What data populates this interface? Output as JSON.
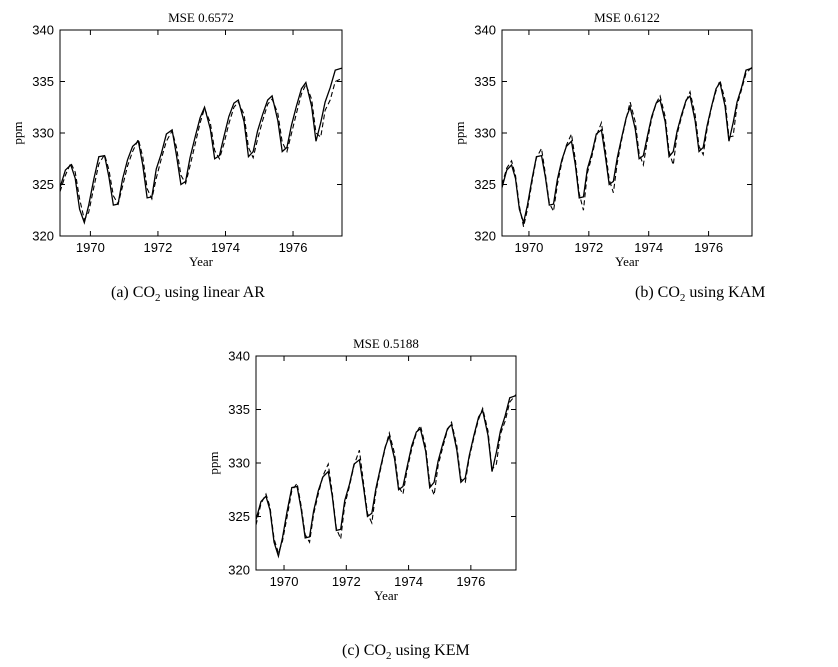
{
  "chart_data": [
    {
      "type": "line",
      "title": "MSE 0.6572",
      "xlabel": "Year",
      "ylabel": "ppm",
      "xlim": [
        1969.1,
        1977.45
      ],
      "ylim": [
        320,
        340
      ],
      "xticks": [
        1970,
        1972,
        1974,
        1976
      ],
      "yticks": [
        320,
        325,
        330,
        335,
        340
      ],
      "caption_prefix": "(a)",
      "caption_co": "CO",
      "caption_sub": "2",
      "caption_rest": "using linear AR",
      "series": [
        {
          "style": "solid",
          "x": [
            1969.1,
            1969.26,
            1969.42,
            1969.55,
            1969.68,
            1969.82,
            1969.95,
            1970.1,
            1970.25,
            1970.42,
            1970.55,
            1970.68,
            1970.82,
            1970.95,
            1971.1,
            1971.25,
            1971.42,
            1971.55,
            1971.68,
            1971.82,
            1971.95,
            1972.1,
            1972.25,
            1972.42,
            1972.55,
            1972.68,
            1972.82,
            1972.95,
            1973.1,
            1973.25,
            1973.38,
            1973.55,
            1973.68,
            1973.82,
            1973.95,
            1974.1,
            1974.25,
            1974.38,
            1974.55,
            1974.68,
            1974.82,
            1974.95,
            1975.1,
            1975.25,
            1975.38,
            1975.55,
            1975.68,
            1975.82,
            1975.95,
            1976.1,
            1976.25,
            1976.38,
            1976.55,
            1976.68,
            1976.82,
            1976.95,
            1977.1,
            1977.25,
            1977.45
          ],
          "y": [
            324.7,
            326.4,
            326.9,
            325.6,
            322.6,
            321.3,
            323.0,
            325.5,
            327.7,
            327.8,
            325.7,
            323.0,
            323.1,
            325.5,
            327.4,
            328.7,
            329.2,
            326.9,
            323.7,
            323.8,
            326.5,
            328.0,
            329.9,
            330.3,
            327.8,
            325.0,
            325.3,
            327.6,
            329.6,
            331.5,
            332.5,
            330.4,
            327.5,
            327.8,
            329.6,
            331.6,
            332.9,
            333.2,
            331.1,
            327.7,
            328.2,
            330.2,
            331.8,
            333.2,
            333.6,
            331.2,
            328.2,
            328.6,
            330.7,
            332.6,
            334.3,
            334.9,
            332.6,
            329.2,
            331.0,
            333.0,
            334.4,
            336.1,
            336.3
          ]
        },
        {
          "style": "dashed",
          "x": [
            1969.1,
            1969.26,
            1969.42,
            1969.55,
            1969.68,
            1969.82,
            1969.95,
            1970.1,
            1970.25,
            1970.42,
            1970.55,
            1970.68,
            1970.82,
            1970.95,
            1971.1,
            1971.25,
            1971.42,
            1971.55,
            1971.68,
            1971.82,
            1971.95,
            1972.1,
            1972.25,
            1972.42,
            1972.55,
            1972.68,
            1972.82,
            1972.95,
            1973.1,
            1973.25,
            1973.38,
            1973.55,
            1973.68,
            1973.82,
            1973.95,
            1974.1,
            1974.25,
            1974.38,
            1974.55,
            1974.68,
            1974.82,
            1974.95,
            1975.1,
            1975.25,
            1975.38,
            1975.55,
            1975.68,
            1975.82,
            1975.95,
            1976.1,
            1976.25,
            1976.38,
            1976.55,
            1976.68,
            1976.82,
            1976.95,
            1977.1,
            1977.25,
            1977.45
          ],
          "y": [
            324.3,
            325.9,
            327.1,
            326.2,
            323.6,
            321.6,
            322.3,
            324.7,
            327.0,
            327.9,
            326.4,
            323.9,
            323.1,
            324.8,
            326.8,
            328.2,
            329.4,
            327.7,
            324.6,
            323.6,
            325.6,
            327.5,
            329.2,
            330.2,
            328.6,
            325.9,
            325.1,
            326.8,
            328.9,
            331.0,
            332.4,
            331.0,
            328.3,
            327.5,
            328.9,
            330.9,
            332.5,
            333.0,
            331.8,
            328.6,
            327.6,
            329.4,
            331.2,
            332.8,
            333.3,
            331.9,
            329.1,
            328.2,
            329.9,
            331.9,
            333.8,
            334.7,
            333.3,
            330.0,
            329.6,
            332.2,
            333.2,
            335.0,
            335.3
          ]
        }
      ]
    },
    {
      "type": "line",
      "title": "MSE 0.6122",
      "xlabel": "Year",
      "ylabel": "ppm",
      "xlim": [
        1969.1,
        1977.45
      ],
      "ylim": [
        320,
        340
      ],
      "xticks": [
        1970,
        1972,
        1974,
        1976
      ],
      "yticks": [
        320,
        325,
        330,
        335,
        340
      ],
      "caption_prefix": "(b)",
      "caption_co": "CO",
      "caption_sub": "2",
      "caption_rest": "using KAM",
      "series": [
        {
          "style": "solid",
          "x": [
            1969.1,
            1969.26,
            1969.42,
            1969.55,
            1969.68,
            1969.82,
            1969.95,
            1970.1,
            1970.25,
            1970.42,
            1970.55,
            1970.68,
            1970.82,
            1970.95,
            1971.1,
            1971.25,
            1971.42,
            1971.55,
            1971.68,
            1971.82,
            1971.95,
            1972.1,
            1972.25,
            1972.42,
            1972.55,
            1972.68,
            1972.82,
            1972.95,
            1973.1,
            1973.25,
            1973.38,
            1973.55,
            1973.68,
            1973.82,
            1973.95,
            1974.1,
            1974.25,
            1974.38,
            1974.55,
            1974.68,
            1974.82,
            1974.95,
            1975.1,
            1975.25,
            1975.38,
            1975.55,
            1975.68,
            1975.82,
            1975.95,
            1976.1,
            1976.25,
            1976.38,
            1976.55,
            1976.68,
            1976.82,
            1976.95,
            1977.1,
            1977.25,
            1977.45
          ],
          "y": [
            324.7,
            326.4,
            326.9,
            325.6,
            322.6,
            321.3,
            323.0,
            325.5,
            327.7,
            327.8,
            325.7,
            323.0,
            323.1,
            325.5,
            327.4,
            328.7,
            329.2,
            326.9,
            323.7,
            323.8,
            326.5,
            328.0,
            329.9,
            330.3,
            327.8,
            325.0,
            325.3,
            327.6,
            329.6,
            331.5,
            332.5,
            330.4,
            327.5,
            327.8,
            329.6,
            331.6,
            332.9,
            333.2,
            331.1,
            327.7,
            328.2,
            330.2,
            331.8,
            333.2,
            333.6,
            331.2,
            328.2,
            328.6,
            330.7,
            332.6,
            334.3,
            334.9,
            332.6,
            329.2,
            331.0,
            333.0,
            334.4,
            336.1,
            336.3
          ]
        },
        {
          "style": "dashed",
          "x": [
            1969.1,
            1969.26,
            1969.42,
            1969.55,
            1969.68,
            1969.82,
            1969.95,
            1970.1,
            1970.25,
            1970.42,
            1970.55,
            1970.68,
            1970.82,
            1970.95,
            1971.1,
            1971.25,
            1971.42,
            1971.55,
            1971.68,
            1971.82,
            1971.95,
            1972.1,
            1972.25,
            1972.42,
            1972.55,
            1972.68,
            1972.82,
            1972.95,
            1973.1,
            1973.25,
            1973.38,
            1973.55,
            1973.68,
            1973.82,
            1973.95,
            1974.1,
            1974.25,
            1974.38,
            1974.55,
            1974.68,
            1974.82,
            1974.95,
            1975.1,
            1975.25,
            1975.38,
            1975.55,
            1975.68,
            1975.82,
            1975.95,
            1976.1,
            1976.25,
            1976.38,
            1976.55,
            1976.68,
            1976.82,
            1976.95,
            1977.1,
            1977.25,
            1977.45
          ],
          "y": [
            325.0,
            326.6,
            327.3,
            325.9,
            322.9,
            320.9,
            322.6,
            325.2,
            327.6,
            328.5,
            326.0,
            323.2,
            322.4,
            325.0,
            327.2,
            328.8,
            329.9,
            327.4,
            324.1,
            322.5,
            326.1,
            327.7,
            329.7,
            331.0,
            328.4,
            325.5,
            324.2,
            327.1,
            329.4,
            331.4,
            333.0,
            331.1,
            328.0,
            326.9,
            329.2,
            331.4,
            332.9,
            333.6,
            331.6,
            328.2,
            326.9,
            329.9,
            331.6,
            333.1,
            334.0,
            331.8,
            328.7,
            327.9,
            330.4,
            332.5,
            334.1,
            335.1,
            333.2,
            329.6,
            329.7,
            332.7,
            334.2,
            335.8,
            336.4
          ]
        }
      ]
    },
    {
      "type": "line",
      "title": "MSE 0.5188",
      "xlabel": "Year",
      "ylabel": "ppm",
      "xlim": [
        1969.1,
        1977.45
      ],
      "ylim": [
        320,
        340
      ],
      "xticks": [
        1970,
        1972,
        1974,
        1976
      ],
      "yticks": [
        320,
        325,
        330,
        335,
        340
      ],
      "caption_prefix": "(c)",
      "caption_co": "CO",
      "caption_sub": "2",
      "caption_rest": "using KEM",
      "series": [
        {
          "style": "solid",
          "x": [
            1969.1,
            1969.26,
            1969.42,
            1969.55,
            1969.68,
            1969.82,
            1969.95,
            1970.1,
            1970.25,
            1970.42,
            1970.55,
            1970.68,
            1970.82,
            1970.95,
            1971.1,
            1971.25,
            1971.42,
            1971.55,
            1971.68,
            1971.82,
            1971.95,
            1972.1,
            1972.25,
            1972.42,
            1972.55,
            1972.68,
            1972.82,
            1972.95,
            1973.1,
            1973.25,
            1973.38,
            1973.55,
            1973.68,
            1973.82,
            1973.95,
            1974.1,
            1974.25,
            1974.38,
            1974.55,
            1974.68,
            1974.82,
            1974.95,
            1975.1,
            1975.25,
            1975.38,
            1975.55,
            1975.68,
            1975.82,
            1975.95,
            1976.1,
            1976.25,
            1976.38,
            1976.55,
            1976.68,
            1976.82,
            1976.95,
            1977.1,
            1977.25,
            1977.45
          ],
          "y": [
            324.7,
            326.4,
            326.9,
            325.6,
            322.6,
            321.3,
            323.0,
            325.5,
            327.7,
            327.8,
            325.7,
            323.0,
            323.1,
            325.5,
            327.4,
            328.7,
            329.2,
            326.9,
            323.7,
            323.8,
            326.5,
            328.0,
            329.9,
            330.3,
            327.8,
            325.0,
            325.3,
            327.6,
            329.6,
            331.5,
            332.5,
            330.4,
            327.5,
            327.8,
            329.6,
            331.6,
            332.9,
            333.2,
            331.1,
            327.7,
            328.2,
            330.2,
            331.8,
            333.2,
            333.6,
            331.2,
            328.2,
            328.6,
            330.7,
            332.6,
            334.3,
            334.9,
            332.6,
            329.2,
            331.0,
            333.0,
            334.4,
            336.1,
            336.3
          ]
        },
        {
          "style": "dashed",
          "x": [
            1969.1,
            1969.26,
            1969.42,
            1969.55,
            1969.68,
            1969.82,
            1969.95,
            1970.1,
            1970.25,
            1970.42,
            1970.55,
            1970.68,
            1970.82,
            1970.95,
            1971.1,
            1971.25,
            1971.42,
            1971.55,
            1971.68,
            1971.82,
            1971.95,
            1972.1,
            1972.25,
            1972.42,
            1972.55,
            1972.68,
            1972.82,
            1972.95,
            1973.1,
            1973.25,
            1973.38,
            1973.55,
            1973.68,
            1973.82,
            1973.95,
            1974.1,
            1974.25,
            1974.38,
            1974.55,
            1974.68,
            1974.82,
            1974.95,
            1975.1,
            1975.25,
            1975.38,
            1975.55,
            1975.68,
            1975.82,
            1975.95,
            1976.1,
            1976.25,
            1976.38,
            1976.55,
            1976.68,
            1976.82,
            1976.95,
            1977.1,
            1977.25,
            1977.45
          ],
          "y": [
            324.2,
            326.2,
            327.1,
            325.9,
            322.9,
            321.6,
            322.7,
            325.0,
            327.4,
            328.1,
            326.0,
            323.3,
            322.6,
            325.2,
            327.1,
            328.8,
            329.9,
            327.2,
            323.9,
            322.9,
            326.1,
            327.8,
            329.8,
            331.2,
            328.2,
            325.3,
            324.4,
            327.3,
            329.4,
            331.4,
            332.8,
            330.9,
            327.8,
            327.1,
            329.3,
            331.3,
            332.8,
            333.5,
            331.5,
            328.1,
            327.0,
            329.8,
            331.5,
            333.1,
            333.8,
            331.6,
            328.5,
            328.2,
            330.5,
            332.4,
            334.1,
            335.1,
            333.0,
            329.4,
            329.9,
            332.7,
            333.9,
            335.7,
            336.4
          ]
        }
      ]
    }
  ]
}
